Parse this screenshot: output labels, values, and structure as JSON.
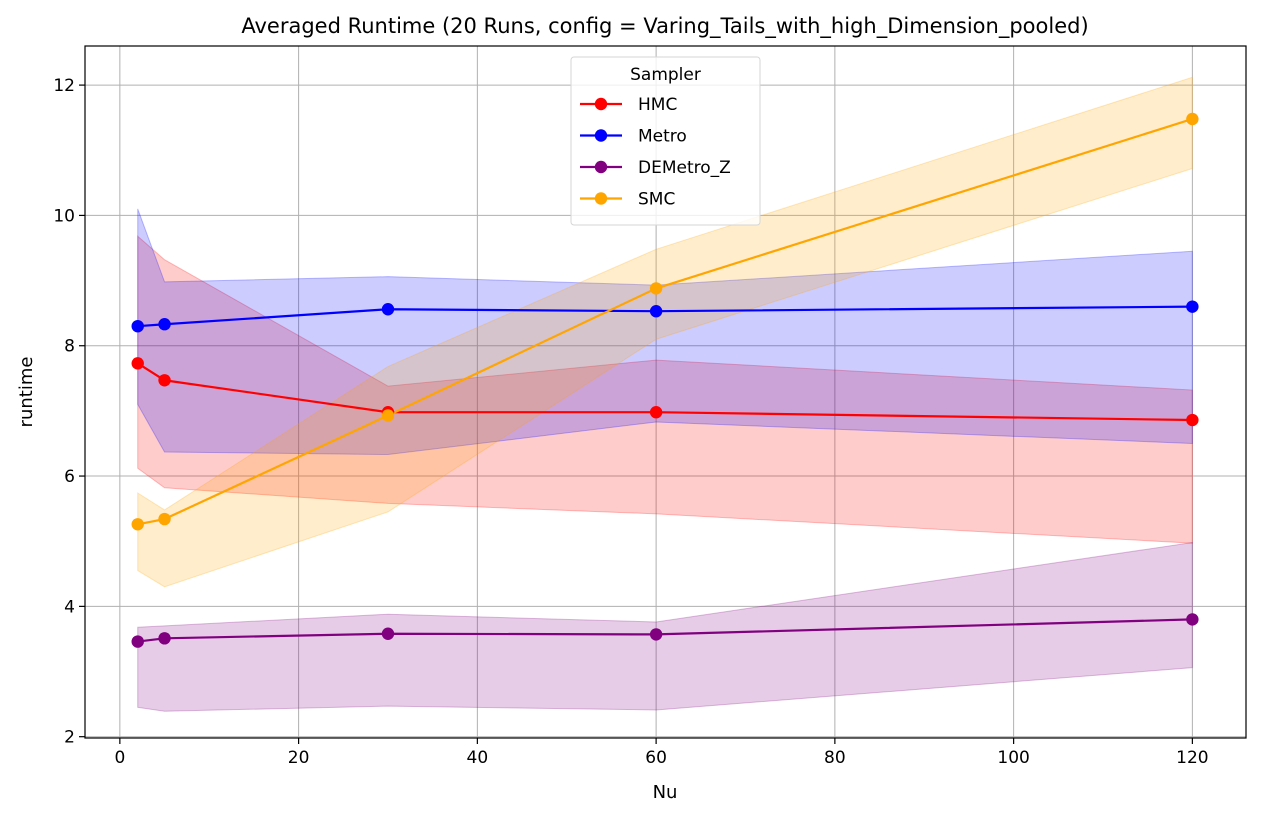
{
  "chart_data": {
    "type": "line",
    "title": "Averaged Runtime (20 Runs, config = Varing_Tails_with_high_Dimension_pooled)",
    "xlabel": "Nu",
    "ylabel": "runtime",
    "xlim": [
      -3.9,
      126
    ],
    "ylim": [
      1.98,
      12.6
    ],
    "xticks": [
      0,
      20,
      40,
      60,
      80,
      100,
      120
    ],
    "yticks": [
      2,
      4,
      6,
      8,
      10,
      12
    ],
    "grid": true,
    "legend": {
      "title": "Sampler",
      "placement": "top-center"
    },
    "x": [
      2,
      5,
      30,
      60,
      120
    ],
    "series": [
      {
        "name": "HMC",
        "color": "#ff0000",
        "values": [
          7.73,
          7.47,
          6.98,
          6.98,
          6.86
        ],
        "lower": [
          6.12,
          5.82,
          5.58,
          5.42,
          4.97
        ],
        "upper": [
          9.68,
          9.32,
          7.38,
          7.78,
          7.32
        ]
      },
      {
        "name": "Metro",
        "color": "#0000ff",
        "values": [
          8.3,
          8.33,
          8.56,
          8.53,
          8.6
        ],
        "lower": [
          7.1,
          6.37,
          6.33,
          6.83,
          6.5
        ],
        "upper": [
          10.1,
          8.98,
          9.06,
          8.93,
          9.45
        ]
      },
      {
        "name": "DEMetro_Z",
        "color": "#800080",
        "values": [
          3.46,
          3.51,
          3.58,
          3.57,
          3.8
        ],
        "lower": [
          2.45,
          2.39,
          2.47,
          2.41,
          3.06
        ],
        "upper": [
          3.68,
          3.7,
          3.88,
          3.76,
          4.98
        ]
      },
      {
        "name": "SMC",
        "color": "#ffa500",
        "values": [
          5.26,
          5.34,
          6.93,
          8.88,
          11.48
        ],
        "lower": [
          4.55,
          4.3,
          5.45,
          8.1,
          10.72
        ],
        "upper": [
          5.74,
          5.48,
          7.68,
          9.48,
          12.12
        ]
      }
    ]
  }
}
